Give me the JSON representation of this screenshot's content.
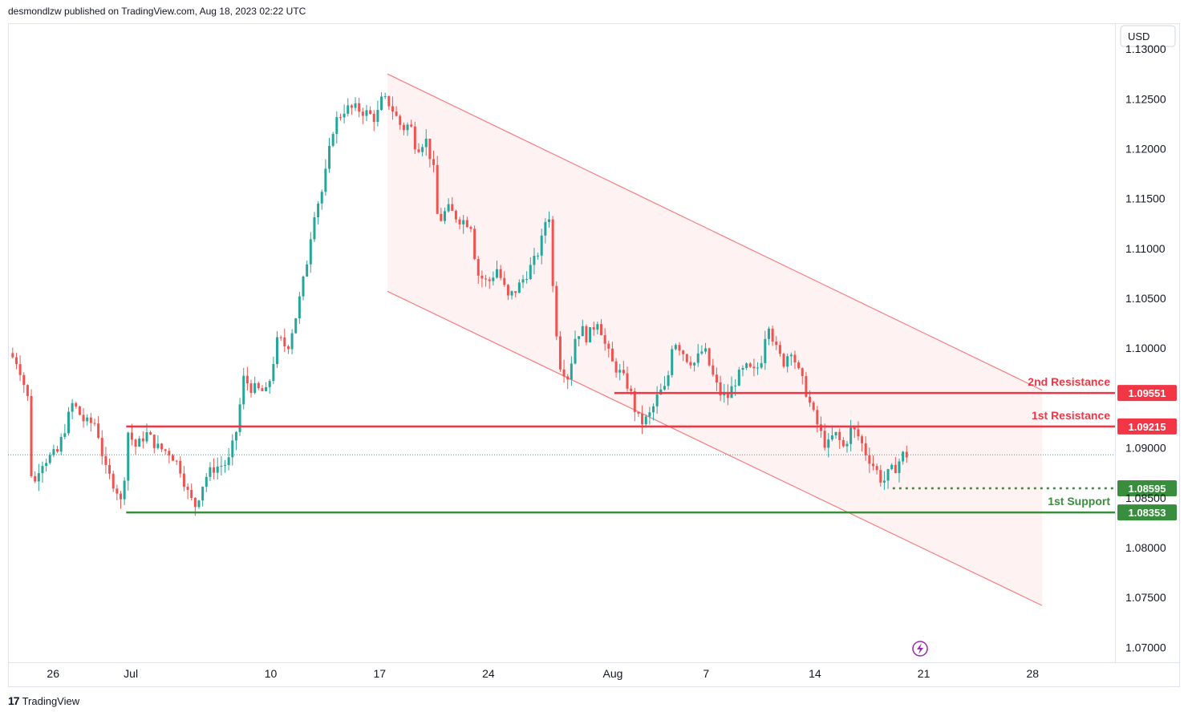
{
  "header": {
    "publisher": "desmondlzw published on TradingView.com, Aug 18, 2023 02:22 UTC"
  },
  "footer": {
    "brand": "TradingView",
    "logo_text": "17"
  },
  "chart_data": {
    "type": "candlestick",
    "currency_label": "USD",
    "y_ticks": [
      "1.13000",
      "1.12500",
      "1.12000",
      "1.11500",
      "1.11000",
      "1.10500",
      "1.10000",
      "1.09000",
      "1.08500",
      "1.08000",
      "1.07500",
      "1.07000"
    ],
    "x_ticks": [
      {
        "label": "26",
        "day": 0
      },
      {
        "label": "Jul",
        "day": 5
      },
      {
        "label": "10",
        "day": 14
      },
      {
        "label": "17",
        "day": 21
      },
      {
        "label": "24",
        "day": 28
      },
      {
        "label": "Aug",
        "day": 36
      },
      {
        "label": "7",
        "day": 42
      },
      {
        "label": "14",
        "day": 49
      },
      {
        "label": "21",
        "day": 56
      },
      {
        "label": "28",
        "day": 63
      }
    ],
    "ylim": [
      1.0685,
      1.1325
    ],
    "xlim_days": [
      -2.9,
      68.3
    ],
    "colors": {
      "up": "#26a69a",
      "down": "#ef5350",
      "resistance": "#f23645",
      "support": "#388e3c",
      "channel": "#f77c80"
    },
    "price_path": [
      [
        -2.6,
        1.0995
      ],
      [
        -2.0,
        1.0985
      ],
      [
        -1.4,
        1.095
      ],
      [
        -1.1,
        1.0855
      ],
      [
        -0.6,
        1.0885
      ],
      [
        0.5,
        1.0895
      ],
      [
        1.5,
        1.0945
      ],
      [
        2.3,
        1.0925
      ],
      [
        3.0,
        1.0925
      ],
      [
        3.6,
        1.0878
      ],
      [
        4.3,
        1.086
      ],
      [
        4.7,
        1.084
      ],
      [
        5.0,
        1.0918
      ],
      [
        5.6,
        1.09
      ],
      [
        6.2,
        1.0915
      ],
      [
        7.0,
        1.09
      ],
      [
        7.8,
        1.0895
      ],
      [
        8.4,
        1.088
      ],
      [
        9.0,
        1.085
      ],
      [
        9.4,
        1.0842
      ],
      [
        10.0,
        1.087
      ],
      [
        10.6,
        1.088
      ],
      [
        11.5,
        1.0885
      ],
      [
        12.0,
        1.0915
      ],
      [
        12.5,
        1.097
      ],
      [
        13.0,
        1.096
      ],
      [
        14.0,
        1.0955
      ],
      [
        14.7,
        1.101
      ],
      [
        15.3,
        1.1
      ],
      [
        15.9,
        1.1035
      ],
      [
        16.5,
        1.108
      ],
      [
        17.0,
        1.1135
      ],
      [
        17.6,
        1.116
      ],
      [
        18.3,
        1.1225
      ],
      [
        19.0,
        1.124
      ],
      [
        19.8,
        1.124
      ],
      [
        20.5,
        1.1235
      ],
      [
        21.0,
        1.123
      ],
      [
        21.4,
        1.125
      ],
      [
        21.9,
        1.1245
      ],
      [
        22.2,
        1.1235
      ],
      [
        22.7,
        1.122
      ],
      [
        23.2,
        1.1225
      ],
      [
        23.6,
        1.12
      ],
      [
        24.2,
        1.121
      ],
      [
        24.7,
        1.118
      ],
      [
        25.0,
        1.1125
      ],
      [
        25.6,
        1.114
      ],
      [
        26.3,
        1.113
      ],
      [
        27.1,
        1.1125
      ],
      [
        27.5,
        1.1075
      ],
      [
        28.2,
        1.1065
      ],
      [
        28.8,
        1.108
      ],
      [
        29.5,
        1.105
      ],
      [
        30.1,
        1.106
      ],
      [
        30.7,
        1.1075
      ],
      [
        31.3,
        1.109
      ],
      [
        31.7,
        1.111
      ],
      [
        32.1,
        1.1145
      ],
      [
        32.4,
        1.1055
      ],
      [
        32.8,
        1.0985
      ],
      [
        33.4,
        1.097
      ],
      [
        33.8,
        1.101
      ],
      [
        34.2,
        1.102
      ],
      [
        34.6,
        1.101
      ],
      [
        35.3,
        1.103
      ],
      [
        35.7,
        1.1005
      ],
      [
        36.2,
        1.0985
      ],
      [
        36.7,
        1.0975
      ],
      [
        37.3,
        1.096
      ],
      [
        37.8,
        1.093
      ],
      [
        38.2,
        1.0925
      ],
      [
        38.7,
        1.0935
      ],
      [
        39.2,
        1.0955
      ],
      [
        39.7,
        1.096
      ],
      [
        40.1,
        1.101
      ],
      [
        40.6,
        1.1
      ],
      [
        41.0,
        1.099
      ],
      [
        41.5,
        1.0985
      ],
      [
        42.1,
        1.1
      ],
      [
        42.6,
        1.0975
      ],
      [
        43.1,
        1.0955
      ],
      [
        43.6,
        1.095
      ],
      [
        44.2,
        1.097
      ],
      [
        44.8,
        1.098
      ],
      [
        45.4,
        1.0975
      ],
      [
        45.8,
        1.099
      ],
      [
        46.2,
        1.103
      ],
      [
        46.7,
        1.1
      ],
      [
        47.2,
        1.0985
      ],
      [
        47.7,
        1.1
      ],
      [
        48.2,
        1.0975
      ],
      [
        48.6,
        1.096
      ],
      [
        49.1,
        1.0935
      ],
      [
        49.6,
        1.0915
      ],
      [
        50.0,
        1.09
      ],
      [
        50.5,
        1.0915
      ],
      [
        51.1,
        1.09
      ],
      [
        51.6,
        1.092
      ],
      [
        52.1,
        1.091
      ],
      [
        52.5,
        1.0895
      ],
      [
        53.1,
        1.088
      ],
      [
        53.6,
        1.0865
      ],
      [
        54.0,
        1.0875
      ],
      [
        54.4,
        1.088
      ],
      [
        54.9,
        1.0893
      ]
    ],
    "channel": {
      "upper": [
        [
          21.5,
          1.1275
        ],
        [
          63.6,
          1.0958
        ]
      ],
      "lower": [
        [
          21.5,
          1.1057
        ],
        [
          63.6,
          1.0742
        ]
      ]
    },
    "levels": [
      {
        "label": "2nd Resistance",
        "value_text": "1.09551",
        "value": 1.09551,
        "x_start_day": 36.1,
        "kind": "resistance"
      },
      {
        "label": "1st Resistance",
        "value_text": "1.09215",
        "value": 1.09215,
        "x_start_day": 4.7,
        "kind": "resistance"
      },
      {
        "label": "",
        "value_text": "1.08595",
        "value": 1.08595,
        "x_start_day": 54.0,
        "kind": "support-dotted"
      },
      {
        "label": "1st Support",
        "value_text": "1.08353",
        "value": 1.08353,
        "x_start_day": 4.7,
        "kind": "support"
      }
    ],
    "last_price_line": 1.0893
  }
}
